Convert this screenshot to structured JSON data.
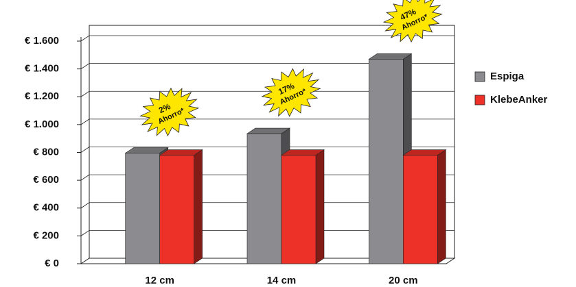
{
  "chart_data": {
    "type": "bar3d",
    "categories": [
      "12 cm",
      "14 cm",
      "20 cm"
    ],
    "series": [
      {
        "name": "Espiga",
        "color": "#8c8c90",
        "values": [
          795,
          935,
          1470
        ]
      },
      {
        "name": "KlebeAnker",
        "color": "#ee3128",
        "values": [
          780,
          780,
          780
        ]
      }
    ],
    "ylim": [
      0,
      1600
    ],
    "yticks": [
      {
        "value": 0,
        "label": "€ 0"
      },
      {
        "value": 200,
        "label": "€ 200"
      },
      {
        "value": 400,
        "label": "€ 400"
      },
      {
        "value": 600,
        "label": "€ 600"
      },
      {
        "value": 800,
        "label": "€ 800"
      },
      {
        "value": 1000,
        "label": "€ 1.000"
      },
      {
        "value": 1200,
        "label": "€ 1.200"
      },
      {
        "value": 1400,
        "label": "€ 1.400"
      },
      {
        "value": 1600,
        "label": "€ 1.600"
      }
    ],
    "grid": true,
    "annotations": [
      {
        "text": "2%",
        "subtext": "Ahorro*"
      },
      {
        "text": "17%",
        "subtext": "Ahorro*"
      },
      {
        "text": "47%",
        "subtext": "Ahorro*"
      }
    ]
  }
}
